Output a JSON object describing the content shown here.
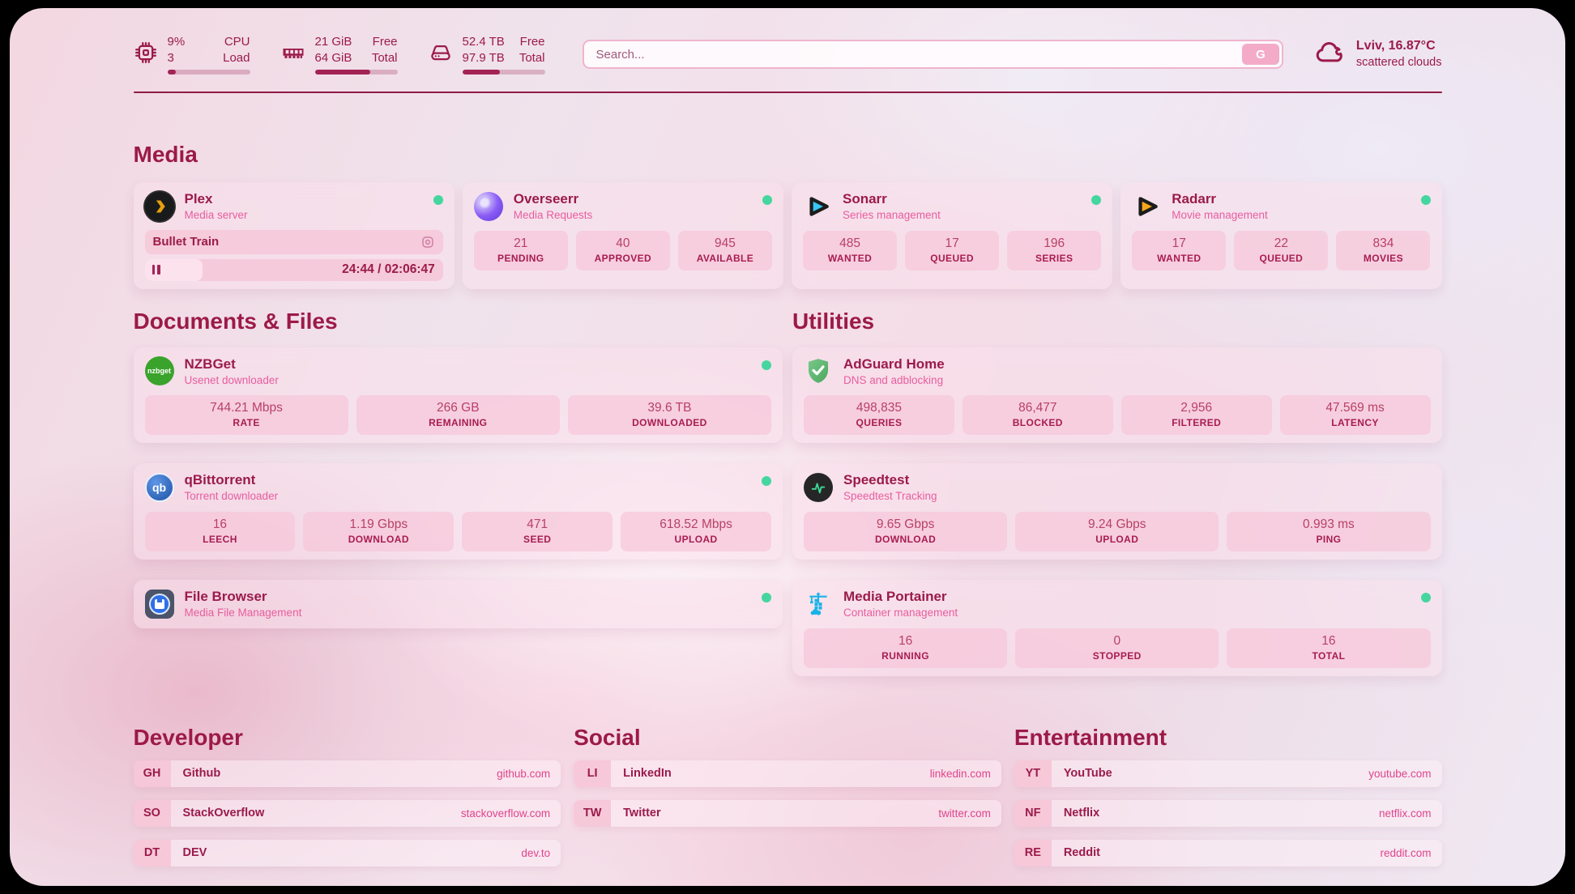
{
  "topbar": {
    "cpu": {
      "value_top": "9%",
      "value_bottom": "3",
      "label_top": "CPU",
      "label_bottom": "Load",
      "progress": 10
    },
    "memory": {
      "value_top": "21 GiB",
      "value_bottom": "64 GiB",
      "label_top": "Free",
      "label_bottom": "Total",
      "progress": 67
    },
    "disk": {
      "value_top": "52.4 TB",
      "value_bottom": "97.9 TB",
      "label_top": "Free",
      "label_bottom": "Total",
      "progress": 46
    },
    "search": {
      "placeholder": "Search...",
      "button": "G"
    },
    "weather": {
      "location": "Lviv, 16.87°C",
      "condition": "scattered clouds"
    }
  },
  "sections": {
    "media": "Media",
    "documents": "Documents & Files",
    "utilities": "Utilities",
    "developer": "Developer",
    "social": "Social",
    "entertainment": "Entertainment"
  },
  "apps": {
    "plex": {
      "name": "Plex",
      "subtitle": "Media server",
      "now_playing": "Bullet Train",
      "time": "24:44 / 02:06:47",
      "progress": 19.5
    },
    "overseerr": {
      "name": "Overseerr",
      "subtitle": "Media Requests",
      "stats": [
        {
          "value": "21",
          "label": "PENDING"
        },
        {
          "value": "40",
          "label": "APPROVED"
        },
        {
          "value": "945",
          "label": "AVAILABLE"
        }
      ]
    },
    "sonarr": {
      "name": "Sonarr",
      "subtitle": "Series management",
      "stats": [
        {
          "value": "485",
          "label": "WANTED"
        },
        {
          "value": "17",
          "label": "QUEUED"
        },
        {
          "value": "196",
          "label": "SERIES"
        }
      ]
    },
    "radarr": {
      "name": "Radarr",
      "subtitle": "Movie management",
      "stats": [
        {
          "value": "17",
          "label": "WANTED"
        },
        {
          "value": "22",
          "label": "QUEUED"
        },
        {
          "value": "834",
          "label": "MOVIES"
        }
      ]
    },
    "nzbget": {
      "name": "NZBGet",
      "subtitle": "Usenet downloader",
      "icon_text": "nzbget",
      "stats": [
        {
          "value": "744.21 Mbps",
          "label": "RATE"
        },
        {
          "value": "266 GB",
          "label": "REMAINING"
        },
        {
          "value": "39.6 TB",
          "label": "DOWNLOADED"
        }
      ]
    },
    "qbittorrent": {
      "name": "qBittorrent",
      "subtitle": "Torrent downloader",
      "icon_text": "qb",
      "stats": [
        {
          "value": "16",
          "label": "LEECH"
        },
        {
          "value": "1.19 Gbps",
          "label": "DOWNLOAD"
        },
        {
          "value": "471",
          "label": "SEED"
        },
        {
          "value": "618.52 Mbps",
          "label": "UPLOAD"
        }
      ]
    },
    "filebrowser": {
      "name": "File Browser",
      "subtitle": "Media File Management"
    },
    "adguard": {
      "name": "AdGuard Home",
      "subtitle": "DNS and adblocking",
      "stats": [
        {
          "value": "498,835",
          "label": "QUERIES"
        },
        {
          "value": "86,477",
          "label": "BLOCKED"
        },
        {
          "value": "2,956",
          "label": "FILTERED"
        },
        {
          "value": "47.569 ms",
          "label": "LATENCY"
        }
      ]
    },
    "speedtest": {
      "name": "Speedtest",
      "subtitle": "Speedtest Tracking",
      "stats": [
        {
          "value": "9.65 Gbps",
          "label": "DOWNLOAD"
        },
        {
          "value": "9.24 Gbps",
          "label": "UPLOAD"
        },
        {
          "value": "0.993 ms",
          "label": "PING"
        }
      ]
    },
    "portainer": {
      "name": "Media Portainer",
      "subtitle": "Container management",
      "stats": [
        {
          "value": "16",
          "label": "RUNNING"
        },
        {
          "value": "0",
          "label": "STOPPED"
        },
        {
          "value": "16",
          "label": "TOTAL"
        }
      ]
    }
  },
  "bookmarks": {
    "developer": [
      {
        "abbr": "GH",
        "name": "Github",
        "url": "github.com"
      },
      {
        "abbr": "SO",
        "name": "StackOverflow",
        "url": "stackoverflow.com"
      },
      {
        "abbr": "DT",
        "name": "DEV",
        "url": "dev.to"
      }
    ],
    "social": [
      {
        "abbr": "LI",
        "name": "LinkedIn",
        "url": "linkedin.com"
      },
      {
        "abbr": "TW",
        "name": "Twitter",
        "url": "twitter.com"
      }
    ],
    "entertainment": [
      {
        "abbr": "YT",
        "name": "YouTube",
        "url": "youtube.com"
      },
      {
        "abbr": "NF",
        "name": "Netflix",
        "url": "netflix.com"
      },
      {
        "abbr": "RE",
        "name": "Reddit",
        "url": "reddit.com"
      }
    ]
  },
  "colors": {
    "accent": "#9b1b49",
    "pink": "#e85d9f",
    "status_online": "#45d6a0"
  }
}
